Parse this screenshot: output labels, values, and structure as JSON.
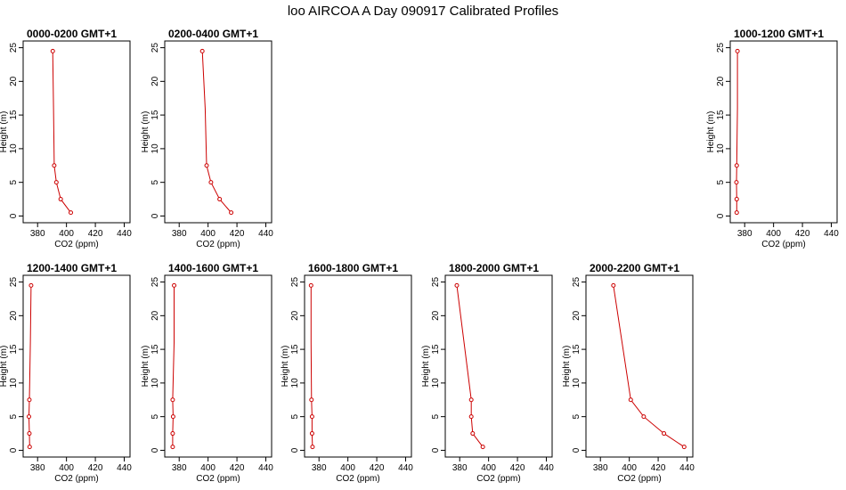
{
  "figure": {
    "title": "loo AIRCOA A  Day 090917  Calibrated Profiles"
  },
  "style": {
    "line_color": "#cc0000",
    "point_color": "#cc0000",
    "frame_color": "#000000"
  },
  "chart_data": [
    {
      "type": "line",
      "title": "0000-0200 GMT+1",
      "xlabel": "CO2 (ppm)",
      "ylabel": "Height (m)",
      "xlim": [
        370,
        444
      ],
      "ylim": [
        -1,
        26
      ],
      "xticks": [
        380,
        400,
        420,
        440
      ],
      "yticks": [
        0,
        5,
        10,
        15,
        20,
        25
      ],
      "x": [
        403,
        396,
        393,
        391.5,
        391,
        390.5
      ],
      "y": [
        0.5,
        2.5,
        5,
        7.5,
        16,
        24.5
      ],
      "markers_at": [
        0,
        1,
        2,
        3,
        5
      ]
    },
    {
      "type": "line",
      "title": "0200-0400 GMT+1",
      "xlabel": "CO2 (ppm)",
      "ylabel": "Height (m)",
      "xlim": [
        370,
        444
      ],
      "ylim": [
        -1,
        26
      ],
      "xticks": [
        380,
        400,
        420,
        440
      ],
      "yticks": [
        0,
        5,
        10,
        15,
        20,
        25
      ],
      "x": [
        416,
        408,
        402,
        399,
        398,
        396
      ],
      "y": [
        0.5,
        2.5,
        5,
        7.5,
        16,
        24.5
      ],
      "markers_at": [
        0,
        1,
        2,
        3,
        5
      ]
    },
    {
      "type": "line",
      "title": "1000-1200 GMT+1",
      "xlabel": "CO2 (ppm)",
      "ylabel": "Height (m)",
      "xlim": [
        370,
        444
      ],
      "ylim": [
        -1,
        26
      ],
      "xticks": [
        380,
        400,
        420,
        440
      ],
      "yticks": [
        0,
        5,
        10,
        15,
        20,
        25
      ],
      "x": [
        374.5,
        374.5,
        374.3,
        374.5,
        375,
        375
      ],
      "y": [
        0.5,
        2.5,
        5,
        7.5,
        16,
        24.5
      ],
      "markers_at": [
        0,
        1,
        2,
        3,
        5
      ]
    },
    {
      "type": "line",
      "title": "1200-1400 GMT+1",
      "xlabel": "CO2 (ppm)",
      "ylabel": "Height (m)",
      "xlim": [
        370,
        444
      ],
      "ylim": [
        -1,
        26
      ],
      "xticks": [
        380,
        400,
        420,
        440
      ],
      "yticks": [
        0,
        5,
        10,
        15,
        20,
        25
      ],
      "x": [
        374.5,
        374.3,
        374,
        374.3,
        375,
        375.5
      ],
      "y": [
        0.5,
        2.5,
        5,
        7.5,
        16,
        24.5
      ],
      "markers_at": [
        0,
        1,
        2,
        3,
        5
      ]
    },
    {
      "type": "line",
      "title": "1400-1600 GMT+1",
      "xlabel": "CO2 (ppm)",
      "ylabel": "Height (m)",
      "xlim": [
        370,
        444
      ],
      "ylim": [
        -1,
        26
      ],
      "xticks": [
        380,
        400,
        420,
        440
      ],
      "yticks": [
        0,
        5,
        10,
        15,
        20,
        25
      ],
      "x": [
        375.5,
        375.5,
        375.8,
        375.5,
        376.5,
        376.5
      ],
      "y": [
        0.5,
        2.5,
        5,
        7.5,
        16,
        24.5
      ],
      "markers_at": [
        0,
        1,
        2,
        3,
        5
      ]
    },
    {
      "type": "line",
      "title": "1600-1800 GMT+1",
      "xlabel": "CO2 (ppm)",
      "ylabel": "Height (m)",
      "xlim": [
        370,
        444
      ],
      "ylim": [
        -1,
        26
      ],
      "xticks": [
        380,
        400,
        420,
        440
      ],
      "yticks": [
        0,
        5,
        10,
        15,
        20,
        25
      ],
      "x": [
        375.5,
        375.2,
        375.2,
        374.8,
        374.5,
        374.5
      ],
      "y": [
        0.5,
        2.5,
        5,
        7.5,
        16,
        24.5
      ],
      "markers_at": [
        0,
        1,
        2,
        3,
        5
      ]
    },
    {
      "type": "line",
      "title": "1800-2000 GMT+1",
      "xlabel": "CO2 (ppm)",
      "ylabel": "Height (m)",
      "xlim": [
        370,
        444
      ],
      "ylim": [
        -1,
        26
      ],
      "xticks": [
        380,
        400,
        420,
        440
      ],
      "yticks": [
        0,
        5,
        10,
        15,
        20,
        25
      ],
      "x": [
        396,
        389,
        388,
        388,
        378
      ],
      "y": [
        0.5,
        2.5,
        5,
        7.5,
        24.5
      ],
      "markers_at": [
        0,
        1,
        2,
        3,
        4
      ]
    },
    {
      "type": "line",
      "title": "2000-2200 GMT+1",
      "xlabel": "CO2 (ppm)",
      "ylabel": "Height (m)",
      "xlim": [
        370,
        444
      ],
      "ylim": [
        -1,
        26
      ],
      "xticks": [
        380,
        400,
        420,
        440
      ],
      "yticks": [
        0,
        5,
        10,
        15,
        20,
        25
      ],
      "x": [
        438,
        424,
        410,
        401,
        389
      ],
      "y": [
        0.5,
        2.5,
        5,
        7.5,
        24.5
      ],
      "markers_at": [
        0,
        1,
        2,
        3,
        4
      ]
    }
  ]
}
